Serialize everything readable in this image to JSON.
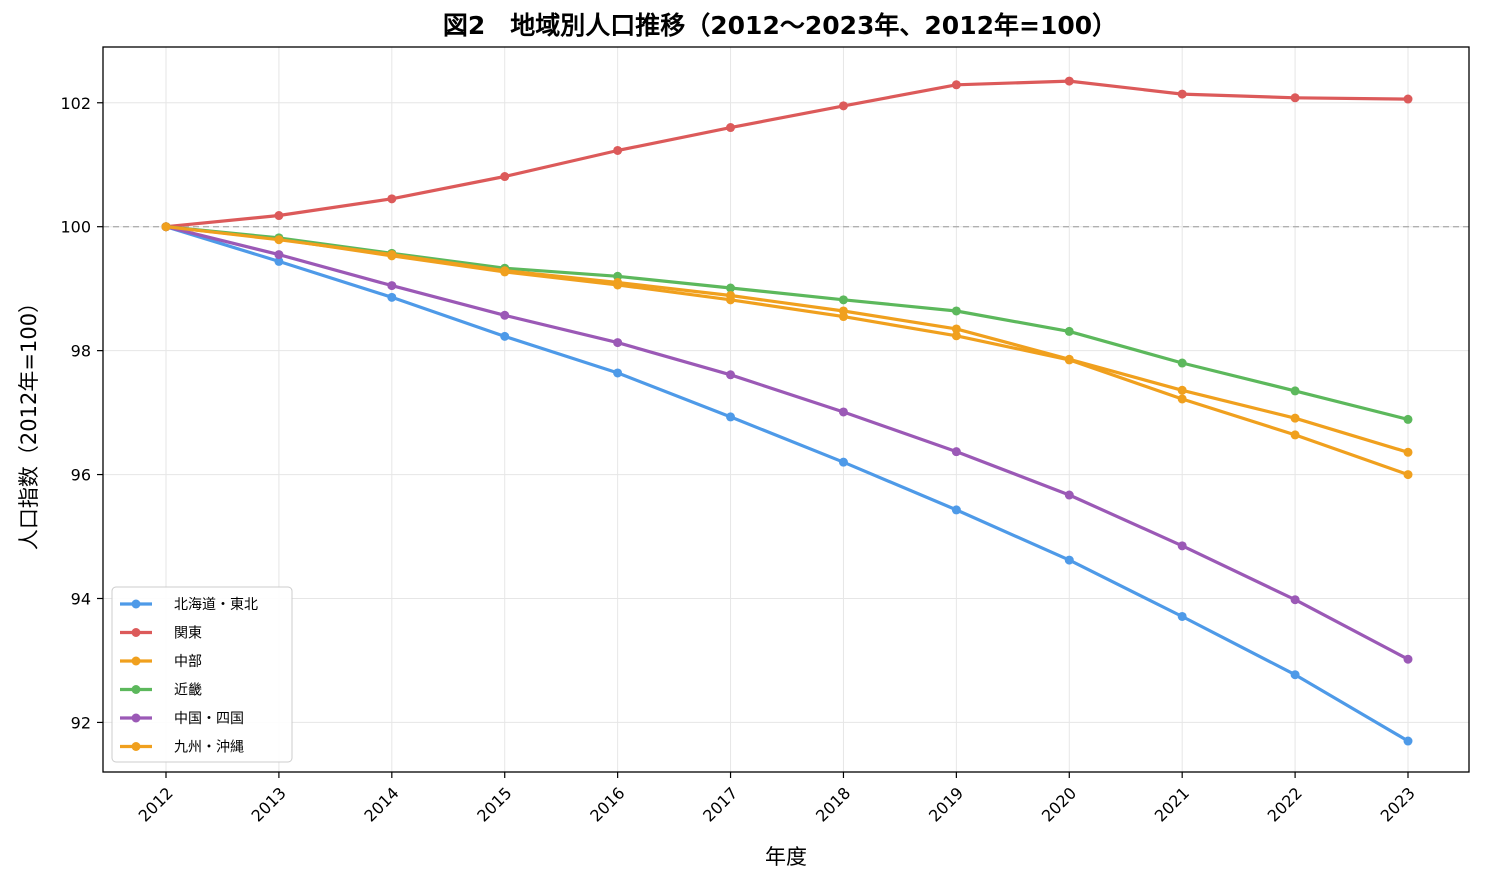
{
  "chart_data": {
    "type": "line",
    "title": "図2　地域別人口推移（2012〜2023年、2012年=100）",
    "xlabel": "年度",
    "ylabel": "人口指数（2012年=100）",
    "categories": [
      "2012",
      "2013",
      "2014",
      "2015",
      "2016",
      "2017",
      "2018",
      "2019",
      "2020",
      "2021",
      "2022",
      "2023"
    ],
    "ylim": [
      91.2,
      102.9
    ],
    "yticks": [
      92,
      94,
      96,
      98,
      100,
      102
    ],
    "reference_line": 100,
    "grid": true,
    "legend_position": "lower-left",
    "series": [
      {
        "name": "北海道・東北",
        "color": "#4e9ae8",
        "values": [
          100,
          99.44,
          98.86,
          98.23,
          97.64,
          96.93,
          96.2,
          95.43,
          94.62,
          93.71,
          92.77,
          91.7
        ]
      },
      {
        "name": "関東",
        "color": "#dc5a5a",
        "values": [
          100,
          100.18,
          100.45,
          100.81,
          101.23,
          101.6,
          101.95,
          102.29,
          102.35,
          102.14,
          102.08,
          102.06
        ]
      },
      {
        "name": "中部",
        "color": "#f0a01e",
        "values": [
          100,
          99.8,
          99.53,
          99.27,
          99.06,
          98.82,
          98.55,
          98.24,
          97.85,
          97.22,
          96.64,
          96.0
        ]
      },
      {
        "name": "近畿",
        "color": "#5cb85c",
        "values": [
          100,
          99.82,
          99.57,
          99.33,
          99.2,
          99.01,
          98.82,
          98.64,
          98.31,
          97.8,
          97.35,
          96.89
        ]
      },
      {
        "name": "中国・四国",
        "color": "#9b59b6",
        "values": [
          100,
          99.55,
          99.05,
          98.57,
          98.13,
          97.61,
          97.01,
          96.37,
          95.67,
          94.85,
          93.98,
          93.02
        ]
      },
      {
        "name": "九州・沖縄",
        "color": "#f0a01e",
        "values": [
          100,
          99.79,
          99.55,
          99.29,
          99.1,
          98.89,
          98.64,
          98.35,
          97.86,
          97.36,
          96.91,
          96.36
        ]
      }
    ]
  }
}
